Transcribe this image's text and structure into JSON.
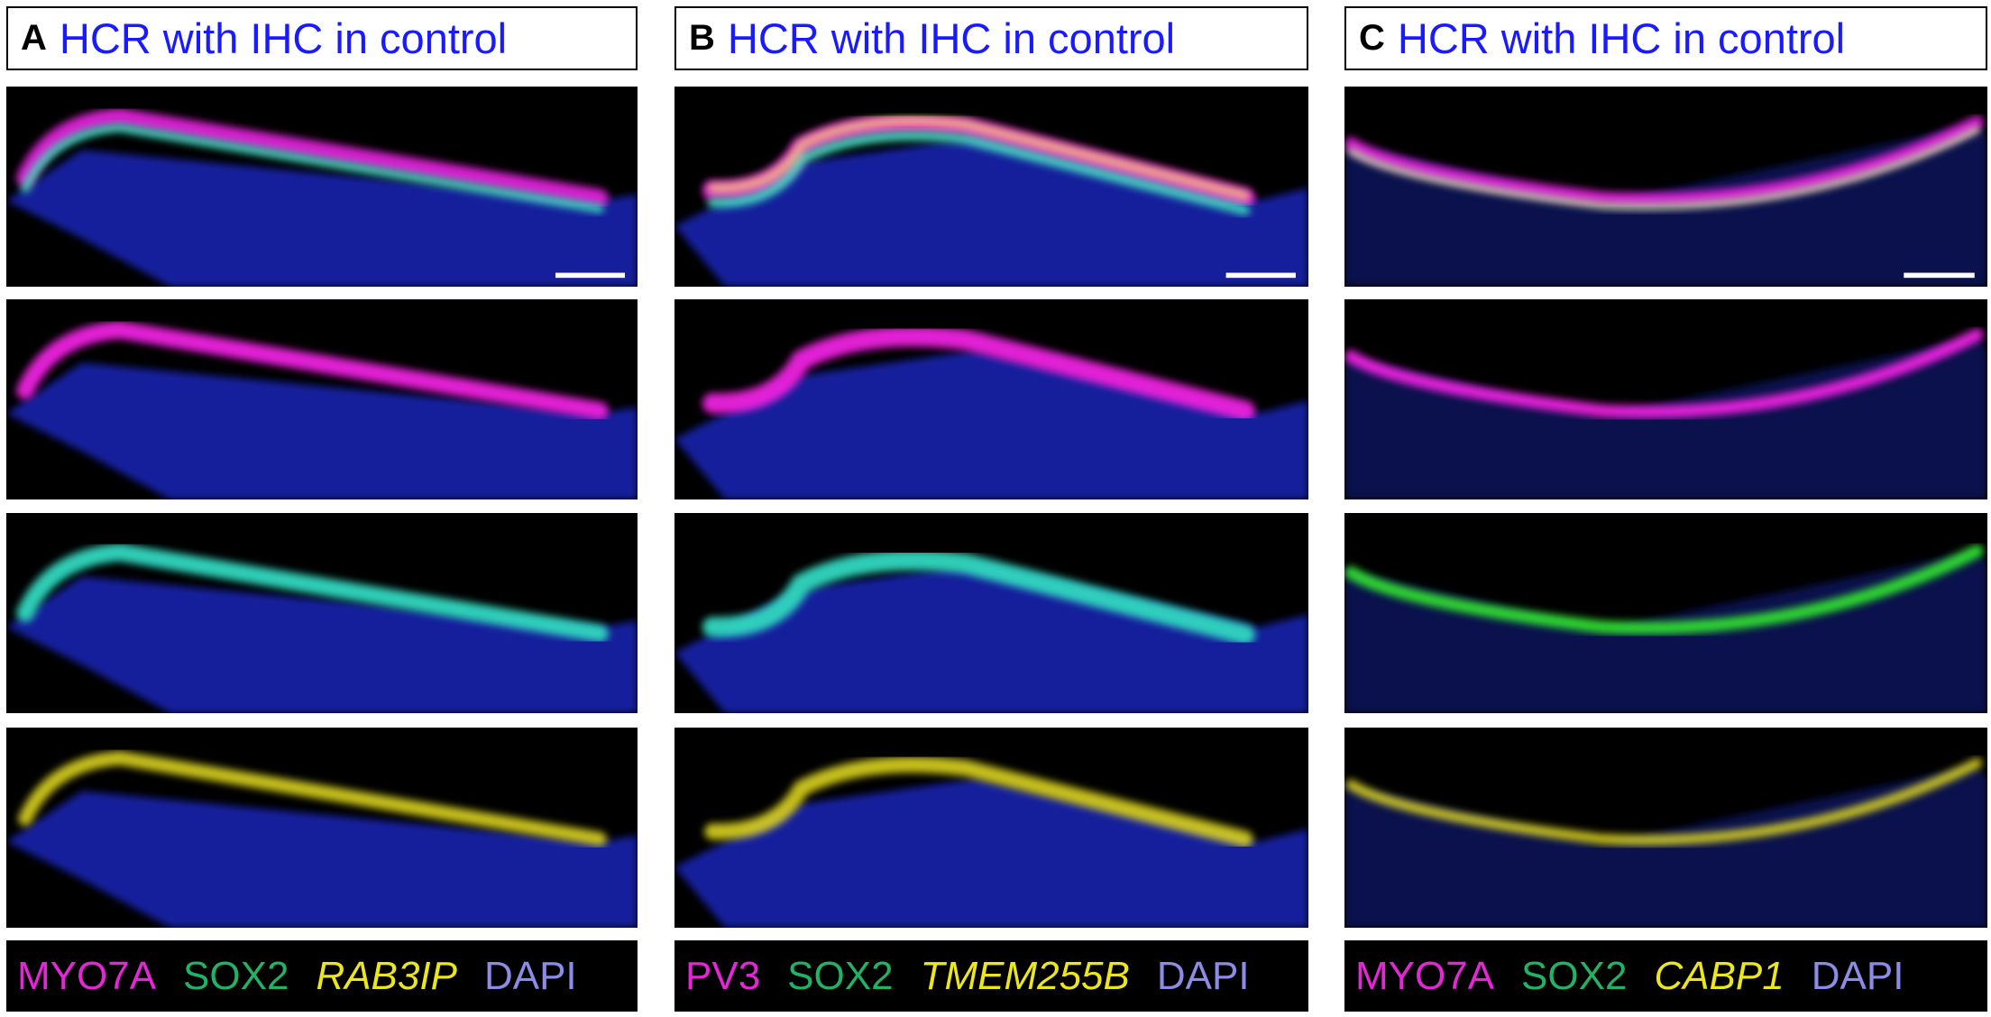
{
  "panels": [
    {
      "letter": "A",
      "title": "HCR with IHC in control",
      "legend": [
        {
          "text": "MYO7A",
          "color": "#e426d6"
        },
        {
          "text": "SOX2",
          "color": "#22b266"
        },
        {
          "text": "RAB3IP",
          "color": "#ece61c",
          "italic": true
        },
        {
          "text": "DAPI",
          "color": "#8c8ce6"
        }
      ]
    },
    {
      "letter": "B",
      "title": "HCR with IHC in control",
      "legend": [
        {
          "text": "PV3",
          "color": "#e426d6"
        },
        {
          "text": "SOX2",
          "color": "#22b266"
        },
        {
          "text": "TMEM255B",
          "color": "#ece61c",
          "italic": true
        },
        {
          "text": "DAPI",
          "color": "#8c8ce6"
        }
      ]
    },
    {
      "letter": "C",
      "title": "HCR with IHC in control",
      "legend": [
        {
          "text": "MYO7A",
          "color": "#e426d6"
        },
        {
          "text": "SOX2",
          "color": "#22b266"
        },
        {
          "text": "CABP1",
          "color": "#ece61c",
          "italic": true
        },
        {
          "text": "DAPI",
          "color": "#8c8ce6"
        }
      ]
    }
  ]
}
